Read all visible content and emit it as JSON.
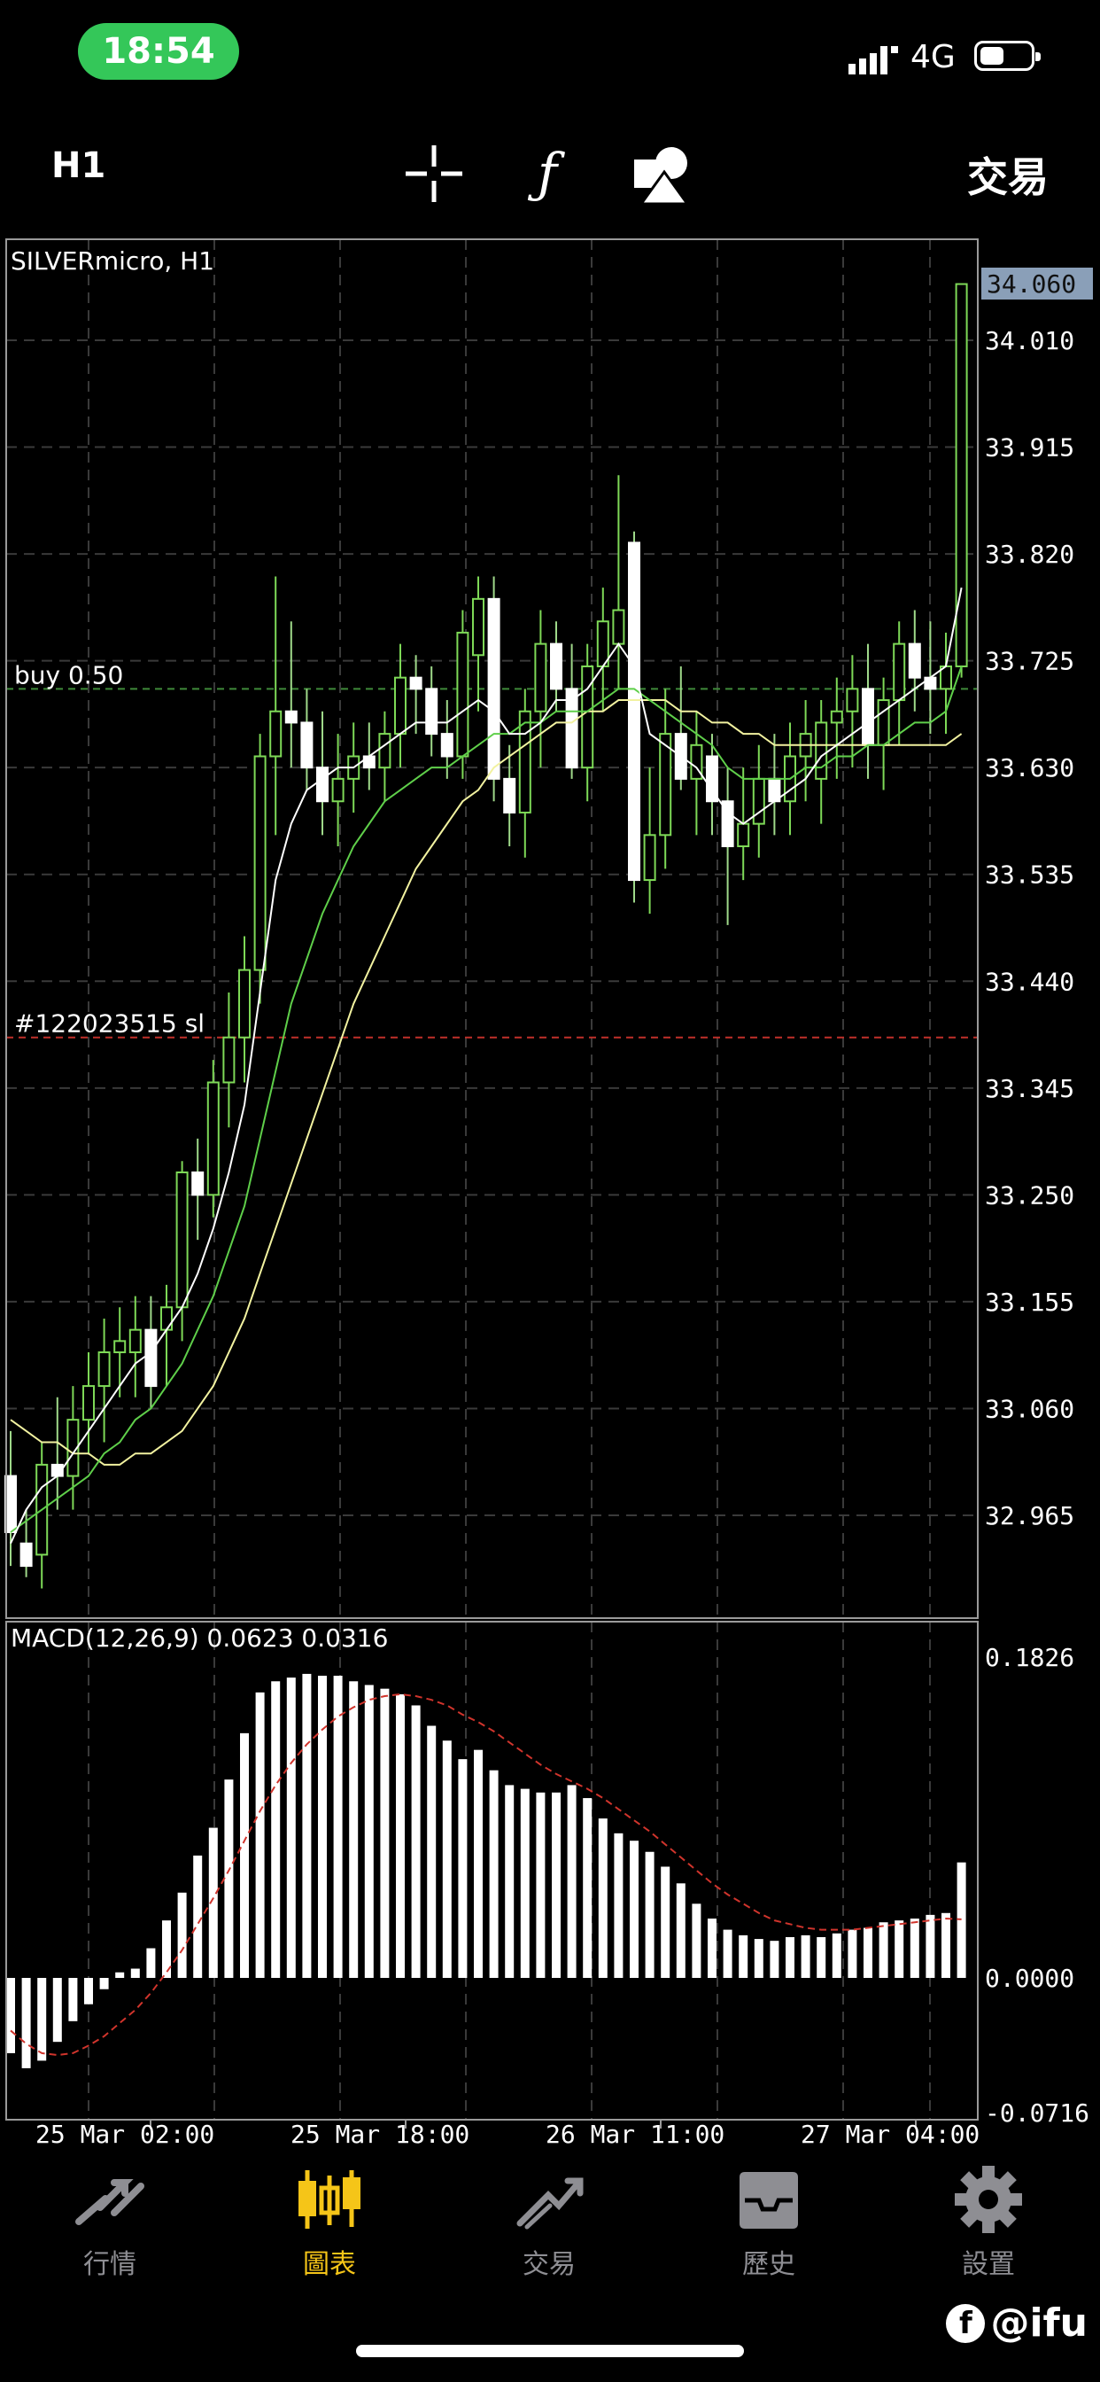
{
  "status": {
    "time": "18:54",
    "network": "4G"
  },
  "toolbar": {
    "timeframe": "H1",
    "crosshair_icon": "crosshair-icon",
    "indicator_label": "ƒ",
    "objects_icon": "shapes-icon",
    "trade_label": "交易"
  },
  "chart": {
    "symbol_label": "SILVERmicro, H1",
    "current_price": "34.060",
    "price_ticks": [
      "34.010",
      "33.915",
      "33.820",
      "33.725",
      "33.630",
      "33.535",
      "33.440",
      "33.345",
      "33.250",
      "33.155",
      "33.060",
      "32.965"
    ],
    "buy_line_label": "buy 0.50",
    "buy_line_price": 33.7,
    "sl_line_label": "#122023515 sl",
    "sl_line_price": 33.39,
    "macd_label": "MACD(12,26,9) 0.0623 0.0316",
    "macd_ticks": [
      "0.1826",
      "0.0000",
      "-0.0716"
    ],
    "time_ticks": [
      "25 Mar 02:00",
      "25 Mar 18:00",
      "26 Mar 11:00",
      "27 Mar 04:00"
    ],
    "colors": {
      "bull": "#7ed957",
      "bear": "#ffffff",
      "ma_fast": "#ffffff",
      "ma_mid": "#5fcf4a",
      "ma_slow": "#f2f2a0",
      "signal": "#d0342c"
    }
  },
  "chart_data": {
    "type": "candlestick",
    "title": "SILVERmicro, H1",
    "ylim": [
      32.88,
      34.1
    ],
    "candles": [
      [
        33.0,
        33.04,
        32.92,
        32.95
      ],
      [
        32.94,
        32.97,
        32.91,
        32.92
      ],
      [
        32.93,
        33.03,
        32.9,
        33.01
      ],
      [
        33.01,
        33.07,
        32.97,
        33.0
      ],
      [
        33.0,
        33.08,
        32.97,
        33.05
      ],
      [
        33.05,
        33.11,
        33.02,
        33.08
      ],
      [
        33.08,
        33.14,
        33.03,
        33.11
      ],
      [
        33.11,
        33.15,
        33.07,
        33.12
      ],
      [
        33.11,
        33.16,
        33.07,
        33.13
      ],
      [
        33.13,
        33.16,
        33.06,
        33.08
      ],
      [
        33.13,
        33.17,
        33.08,
        33.15
      ],
      [
        33.15,
        33.28,
        33.12,
        33.27
      ],
      [
        33.27,
        33.3,
        33.21,
        33.25
      ],
      [
        33.25,
        33.37,
        33.23,
        33.35
      ],
      [
        33.35,
        33.43,
        33.31,
        33.39
      ],
      [
        33.39,
        33.48,
        33.35,
        33.45
      ],
      [
        33.45,
        33.66,
        33.42,
        33.64
      ],
      [
        33.64,
        33.8,
        33.57,
        33.68
      ],
      [
        33.68,
        33.76,
        33.63,
        33.67
      ],
      [
        33.67,
        33.7,
        33.61,
        33.63
      ],
      [
        33.63,
        33.68,
        33.57,
        33.6
      ],
      [
        33.6,
        33.66,
        33.56,
        33.62
      ],
      [
        33.62,
        33.67,
        33.59,
        33.64
      ],
      [
        33.64,
        33.67,
        33.61,
        33.63
      ],
      [
        33.63,
        33.68,
        33.6,
        33.66
      ],
      [
        33.66,
        33.74,
        33.63,
        33.71
      ],
      [
        33.71,
        33.73,
        33.66,
        33.7
      ],
      [
        33.7,
        33.72,
        33.64,
        33.66
      ],
      [
        33.66,
        33.69,
        33.62,
        33.64
      ],
      [
        33.64,
        33.77,
        33.62,
        33.75
      ],
      [
        33.73,
        33.8,
        33.68,
        33.78
      ],
      [
        33.78,
        33.8,
        33.6,
        33.62
      ],
      [
        33.62,
        33.65,
        33.56,
        33.59
      ],
      [
        33.59,
        33.7,
        33.55,
        33.68
      ],
      [
        33.68,
        33.77,
        33.63,
        33.74
      ],
      [
        33.74,
        33.76,
        33.68,
        33.7
      ],
      [
        33.7,
        33.74,
        33.62,
        33.63
      ],
      [
        33.63,
        33.74,
        33.6,
        33.72
      ],
      [
        33.72,
        33.79,
        33.68,
        33.76
      ],
      [
        33.74,
        33.89,
        33.7,
        33.77
      ],
      [
        33.83,
        33.84,
        33.51,
        33.53
      ],
      [
        33.53,
        33.63,
        33.5,
        33.57
      ],
      [
        33.57,
        33.7,
        33.54,
        33.66
      ],
      [
        33.66,
        33.72,
        33.61,
        33.62
      ],
      [
        33.62,
        33.68,
        33.57,
        33.65
      ],
      [
        33.64,
        33.66,
        33.57,
        33.6
      ],
      [
        33.6,
        33.63,
        33.49,
        33.56
      ],
      [
        33.56,
        33.63,
        33.53,
        33.58
      ],
      [
        33.58,
        33.65,
        33.55,
        33.62
      ],
      [
        33.62,
        33.66,
        33.57,
        33.6
      ],
      [
        33.6,
        33.67,
        33.57,
        33.64
      ],
      [
        33.64,
        33.69,
        33.6,
        33.66
      ],
      [
        33.62,
        33.69,
        33.58,
        33.67
      ],
      [
        33.67,
        33.71,
        33.62,
        33.68
      ],
      [
        33.68,
        33.73,
        33.63,
        33.7
      ],
      [
        33.7,
        33.74,
        33.62,
        33.65
      ],
      [
        33.65,
        33.71,
        33.61,
        33.69
      ],
      [
        33.69,
        33.76,
        33.65,
        33.74
      ],
      [
        33.74,
        33.77,
        33.68,
        33.71
      ],
      [
        33.71,
        33.76,
        33.66,
        33.7
      ],
      [
        33.7,
        33.75,
        33.66,
        33.72
      ],
      [
        33.72,
        34.06,
        33.71,
        34.06
      ]
    ],
    "ma_fast": [
      32.94,
      32.97,
      32.99,
      33.0,
      33.02,
      33.04,
      33.06,
      33.08,
      33.1,
      33.11,
      33.13,
      33.15,
      33.18,
      33.22,
      33.27,
      33.33,
      33.43,
      33.53,
      33.58,
      33.61,
      33.62,
      33.63,
      33.63,
      33.64,
      33.65,
      33.66,
      33.67,
      33.67,
      33.67,
      33.68,
      33.69,
      33.68,
      33.66,
      33.66,
      33.67,
      33.69,
      33.69,
      33.7,
      33.72,
      33.74,
      33.72,
      33.66,
      33.65,
      33.64,
      33.63,
      33.61,
      33.59,
      33.58,
      33.59,
      33.6,
      33.61,
      33.62,
      33.64,
      33.65,
      33.66,
      33.67,
      33.68,
      33.69,
      33.7,
      33.71,
      33.72,
      33.79
    ],
    "ma_mid": [
      32.95,
      32.96,
      32.97,
      32.98,
      32.99,
      33.0,
      33.02,
      33.03,
      33.05,
      33.06,
      33.08,
      33.1,
      33.13,
      33.16,
      33.2,
      33.24,
      33.3,
      33.36,
      33.42,
      33.46,
      33.5,
      33.53,
      33.56,
      33.58,
      33.6,
      33.61,
      33.62,
      33.63,
      33.63,
      33.64,
      33.65,
      33.66,
      33.66,
      33.67,
      33.67,
      33.68,
      33.68,
      33.68,
      33.69,
      33.7,
      33.7,
      33.69,
      33.68,
      33.67,
      33.66,
      33.65,
      33.63,
      33.62,
      33.62,
      33.62,
      33.62,
      33.63,
      33.63,
      33.64,
      33.64,
      33.65,
      33.65,
      33.66,
      33.67,
      33.67,
      33.68,
      33.72
    ],
    "ma_slow": [
      33.05,
      33.04,
      33.03,
      33.03,
      33.02,
      33.02,
      33.01,
      33.01,
      33.02,
      33.02,
      33.03,
      33.04,
      33.06,
      33.08,
      33.11,
      33.14,
      33.18,
      33.22,
      33.26,
      33.3,
      33.34,
      33.38,
      33.42,
      33.45,
      33.48,
      33.51,
      33.54,
      33.56,
      33.58,
      33.6,
      33.61,
      33.63,
      33.64,
      33.65,
      33.66,
      33.67,
      33.67,
      33.68,
      33.68,
      33.69,
      33.69,
      33.69,
      33.69,
      33.68,
      33.68,
      33.67,
      33.67,
      33.66,
      33.66,
      33.65,
      33.65,
      33.65,
      33.65,
      33.65,
      33.65,
      33.65,
      33.65,
      33.65,
      33.65,
      33.65,
      33.65,
      33.66
    ],
    "macd_ylim": [
      -0.0716,
      0.1826
    ],
    "macd_hist": [
      -0.04,
      -0.048,
      -0.044,
      -0.034,
      -0.023,
      -0.014,
      -0.006,
      0.003,
      0.005,
      0.016,
      0.031,
      0.046,
      0.066,
      0.081,
      0.107,
      0.132,
      0.154,
      0.16,
      0.162,
      0.164,
      0.163,
      0.163,
      0.16,
      0.158,
      0.156,
      0.153,
      0.147,
      0.136,
      0.128,
      0.118,
      0.123,
      0.112,
      0.104,
      0.102,
      0.1,
      0.1,
      0.104,
      0.097,
      0.086,
      0.078,
      0.074,
      0.068,
      0.06,
      0.051,
      0.04,
      0.032,
      0.026,
      0.023,
      0.021,
      0.02,
      0.022,
      0.023,
      0.022,
      0.024,
      0.026,
      0.027,
      0.03,
      0.031,
      0.032,
      0.034,
      0.035,
      0.0623
    ],
    "macd_signal": [
      -0.028,
      -0.035,
      -0.04,
      -0.041,
      -0.04,
      -0.036,
      -0.031,
      -0.024,
      -0.017,
      -0.008,
      0.003,
      0.015,
      0.029,
      0.043,
      0.058,
      0.074,
      0.09,
      0.104,
      0.116,
      0.126,
      0.134,
      0.141,
      0.146,
      0.15,
      0.152,
      0.153,
      0.152,
      0.15,
      0.147,
      0.142,
      0.138,
      0.133,
      0.127,
      0.121,
      0.115,
      0.11,
      0.106,
      0.102,
      0.097,
      0.091,
      0.085,
      0.079,
      0.072,
      0.065,
      0.058,
      0.051,
      0.045,
      0.04,
      0.035,
      0.031,
      0.029,
      0.027,
      0.026,
      0.026,
      0.026,
      0.027,
      0.028,
      0.029,
      0.03,
      0.031,
      0.032,
      0.0316
    ]
  },
  "tabs": [
    {
      "label": "行情",
      "icon": "quotes-icon"
    },
    {
      "label": "圖表",
      "icon": "chart-icon"
    },
    {
      "label": "交易",
      "icon": "trade-icon"
    },
    {
      "label": "歷史",
      "icon": "history-icon"
    },
    {
      "label": "設置",
      "icon": "settings-icon"
    }
  ],
  "watermark": "@ifu"
}
